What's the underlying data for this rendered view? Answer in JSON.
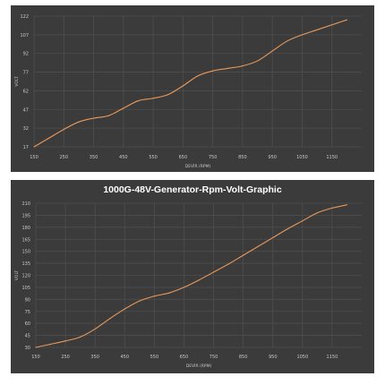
{
  "chart_data": [
    {
      "type": "line",
      "title": "",
      "xlabel": "DEVİR (RPM)",
      "ylabel": "VOLT",
      "xlim": [
        150,
        1250
      ],
      "ylim": [
        17,
        122
      ],
      "xticks": [
        150,
        250,
        350,
        450,
        550,
        650,
        750,
        850,
        950,
        1050,
        1150
      ],
      "yticks": [
        17,
        32,
        47,
        62,
        77,
        92,
        107,
        122
      ],
      "grid": true,
      "background": "#3b3b3b",
      "line_color": "#e8995b",
      "x": [
        150,
        200,
        250,
        300,
        350,
        400,
        450,
        500,
        550,
        600,
        650,
        700,
        750,
        800,
        850,
        900,
        950,
        1000,
        1050,
        1100,
        1150,
        1200
      ],
      "y": [
        17,
        24,
        31,
        37,
        40,
        42,
        48,
        54,
        56,
        59,
        66,
        74,
        78,
        80,
        82,
        86,
        94,
        102,
        107,
        111,
        115,
        119
      ]
    },
    {
      "type": "line",
      "title": "1000G-48V-Generator-Rpm-Volt-Graphic",
      "xlabel": "DEVİR (RPM)",
      "ylabel": "VOLT",
      "xlim": [
        150,
        1250
      ],
      "ylim": [
        30,
        210
      ],
      "xticks": [
        150,
        250,
        350,
        450,
        550,
        650,
        750,
        850,
        950,
        1050,
        1150
      ],
      "yticks": [
        30,
        45,
        60,
        75,
        90,
        105,
        120,
        135,
        150,
        165,
        180,
        195,
        210
      ],
      "grid": true,
      "background": "#3b3b3b",
      "line_color": "#e8995b",
      "x": [
        150,
        200,
        250,
        300,
        350,
        400,
        450,
        500,
        550,
        600,
        650,
        700,
        750,
        800,
        850,
        900,
        950,
        1000,
        1050,
        1100,
        1150,
        1200
      ],
      "y": [
        30,
        34,
        38,
        43,
        53,
        66,
        78,
        88,
        94,
        98,
        105,
        114,
        124,
        134,
        145,
        156,
        167,
        178,
        188,
        198,
        204,
        208
      ]
    }
  ]
}
